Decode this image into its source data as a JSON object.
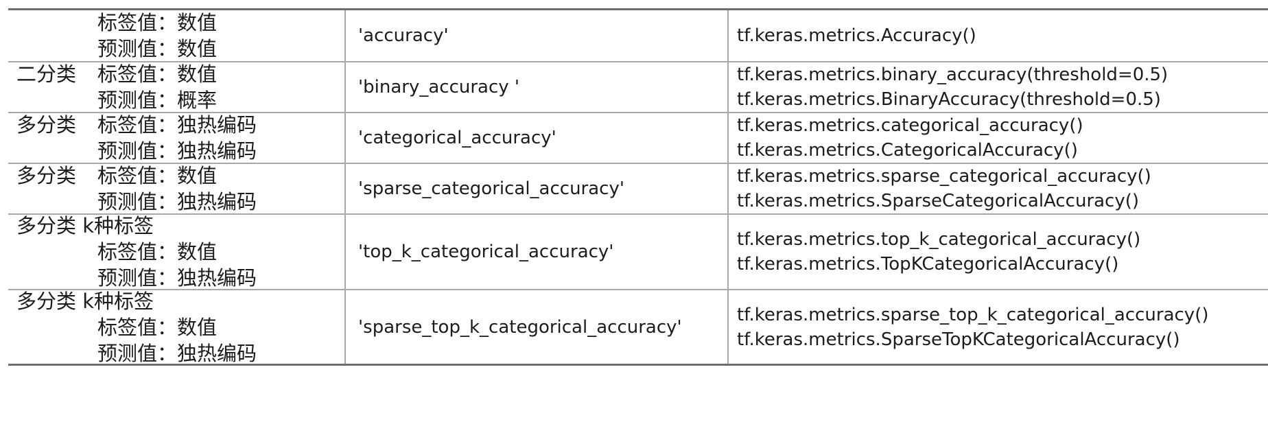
{
  "rows": [
    {
      "lines": [
        {
          "cat": "",
          "text": "标签值：数值"
        },
        {
          "cat": "",
          "text": "预测值：数值"
        }
      ],
      "string": "'accuracy'",
      "funcs": [
        "tf.keras.metrics.Accuracy()"
      ]
    },
    {
      "lines": [
        {
          "cat": "二分类",
          "text": "标签值：数值"
        },
        {
          "cat": "",
          "text": "预测值：概率"
        }
      ],
      "string": "'binary_accuracy '",
      "funcs": [
        "tf.keras.metrics.binary_accuracy(threshold=0.5)",
        "tf.keras.metrics.BinaryAccuracy(threshold=0.5)"
      ]
    },
    {
      "lines": [
        {
          "cat": "多分类",
          "text": "标签值：独热编码"
        },
        {
          "cat": "",
          "text": "预测值：独热编码"
        }
      ],
      "string": "'categorical_accuracy'",
      "funcs": [
        "tf.keras.metrics.categorical_accuracy()",
        "tf.keras.metrics.CategoricalAccuracy()"
      ]
    },
    {
      "lines": [
        {
          "cat": "多分类",
          "text": "标签值：数值"
        },
        {
          "cat": "",
          "text": "预测值：独热编码"
        }
      ],
      "string": "'sparse_categorical_accuracy'",
      "funcs": [
        "tf.keras.metrics.sparse_categorical_accuracy()",
        "tf.keras.metrics.SparseCategoricalAccuracy()"
      ]
    },
    {
      "lines": [
        {
          "cat": "多分类 k种标签",
          "text": ""
        },
        {
          "cat": "",
          "text": "标签值：数值"
        },
        {
          "cat": "",
          "text": "预测值：独热编码"
        }
      ],
      "string": "'top_k_categorical_accuracy'",
      "funcs": [
        "tf.keras.metrics.top_k_categorical_accuracy()",
        "tf.keras.metrics.TopKCategoricalAccuracy()"
      ]
    },
    {
      "lines": [
        {
          "cat": "多分类 k种标签",
          "text": ""
        },
        {
          "cat": "",
          "text": "标签值：数值"
        },
        {
          "cat": "",
          "text": "预测值：独热编码"
        }
      ],
      "string": "'sparse_top_k_categorical_accuracy'",
      "funcs": [
        "tf.keras.metrics.sparse_top_k_categorical_accuracy()",
        "tf.keras.metrics.SparseTopKCategoricalAccuracy()"
      ]
    }
  ]
}
